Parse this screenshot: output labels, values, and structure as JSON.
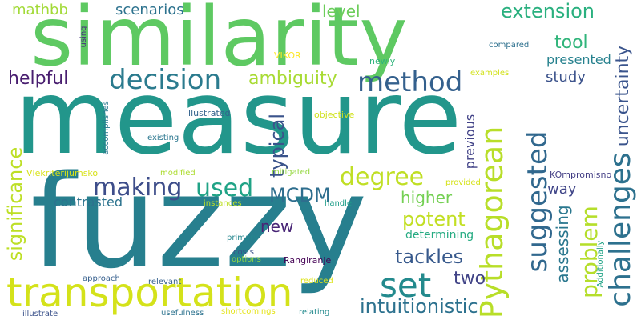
{
  "words": [
    {
      "text": "measure",
      "color": "#22968b"
    },
    {
      "text": "similarity",
      "color": "#5ec962"
    },
    {
      "text": "fuzzy",
      "color": "#277f8e"
    },
    {
      "text": "transportation",
      "color": "#d4e21a"
    },
    {
      "text": "decision",
      "color": "#2b7b8e"
    },
    {
      "text": "method",
      "color": "#34608d"
    },
    {
      "text": "Pythagorean",
      "color": "#b8de29"
    },
    {
      "text": "challenges",
      "color": "#2d718e"
    },
    {
      "text": "uncertainty",
      "color": "#3a548c"
    },
    {
      "text": "suggested",
      "color": "#31688e"
    },
    {
      "text": "problem",
      "color": "#b5de2b"
    },
    {
      "text": "set",
      "color": "#238a8d"
    },
    {
      "text": "making",
      "color": "#3d4d8a"
    },
    {
      "text": "used",
      "color": "#20a386"
    },
    {
      "text": "degree",
      "color": "#c0df25"
    },
    {
      "text": "significance",
      "color": "#bddf26"
    },
    {
      "text": "ambiguity",
      "color": "#a8db34"
    },
    {
      "text": "extension",
      "color": "#2ab07f"
    },
    {
      "text": "MCDM",
      "color": "#2e6e8e"
    },
    {
      "text": "intuitionistic",
      "color": "#2c718e"
    },
    {
      "text": "helpful",
      "color": "#481d6f"
    },
    {
      "text": "typical",
      "color": "#3a538b"
    },
    {
      "text": "potent",
      "color": "#c2df23"
    },
    {
      "text": "tackles",
      "color": "#37598c"
    },
    {
      "text": "assessing",
      "color": "#2a778e"
    },
    {
      "text": "tool",
      "color": "#31b57b"
    },
    {
      "text": "higher",
      "color": "#75d054"
    },
    {
      "text": "two",
      "color": "#414487"
    },
    {
      "text": "level",
      "color": "#6ccd5a"
    },
    {
      "text": "mathbb",
      "color": "#a2da37"
    },
    {
      "text": "scenarios",
      "color": "#2c728e"
    },
    {
      "text": "study",
      "color": "#3b528b"
    },
    {
      "text": "new",
      "color": "#482576"
    },
    {
      "text": "way",
      "color": "#404588"
    },
    {
      "text": "contrasted",
      "color": "#2c738e"
    },
    {
      "text": "presented",
      "color": "#26818e"
    },
    {
      "text": "determining",
      "color": "#25ab82"
    },
    {
      "text": "previous",
      "color": "#414287"
    },
    {
      "text": "using",
      "color": "#472f7d"
    },
    {
      "text": "VIKOR",
      "color": "#fde725"
    },
    {
      "text": "compared",
      "color": "#2d708e"
    },
    {
      "text": "newly",
      "color": "#2fb47c"
    },
    {
      "text": "examples",
      "color": "#d2e21b"
    },
    {
      "text": "accomplishes",
      "color": "#2a788e"
    },
    {
      "text": "illustrated",
      "color": "#33638d"
    },
    {
      "text": "objective",
      "color": "#d0e11c"
    },
    {
      "text": "existing",
      "color": "#2a768e"
    },
    {
      "text": "Vlekriterijumsko",
      "color": "#d8e219"
    },
    {
      "text": "modified",
      "color": "#addc30"
    },
    {
      "text": "mitigated",
      "color": "#95d840"
    },
    {
      "text": "KOmpromisno",
      "color": "#433e85"
    },
    {
      "text": "provided",
      "color": "#d5e21a"
    },
    {
      "text": "instances",
      "color": "#bddf26"
    },
    {
      "text": "handle",
      "color": "#1f9e89"
    },
    {
      "text": "costs",
      "color": "#3b528b"
    },
    {
      "text": "primary",
      "color": "#24868e"
    },
    {
      "text": "options",
      "color": "#90d743"
    },
    {
      "text": "Rangiranje",
      "color": "#440154"
    },
    {
      "text": "Additionally",
      "color": "#20a386"
    },
    {
      "text": "approach",
      "color": "#355f8d"
    },
    {
      "text": "relevant",
      "color": "#34618d"
    },
    {
      "text": "reduced",
      "color": "#dde318"
    },
    {
      "text": "illustrate",
      "color": "#3b528b"
    },
    {
      "text": "usefulness",
      "color": "#2c728e"
    },
    {
      "text": "shortcomings",
      "color": "#e5e419"
    },
    {
      "text": "relating",
      "color": "#238a8d"
    }
  ]
}
